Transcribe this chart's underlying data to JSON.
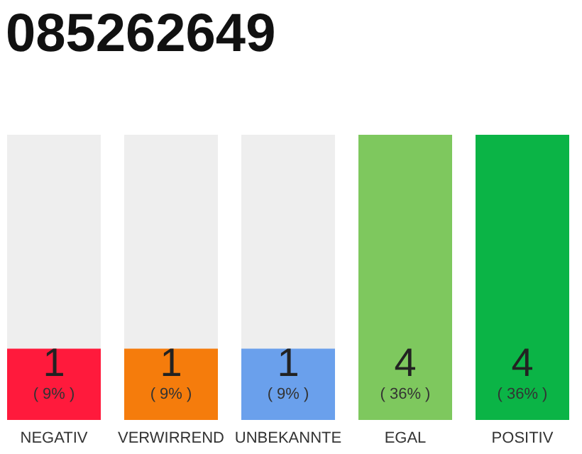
{
  "chart_data": {
    "type": "bar",
    "title": "085262649",
    "categories": [
      "NEGATIV",
      "VERWIRREND",
      "UNBEKANNTE",
      "EGAL",
      "POSITIV"
    ],
    "values": [
      1,
      1,
      1,
      4,
      4
    ],
    "colors": [
      "#ff1a3c",
      "#f57c0c",
      "#6aa0ec",
      "#7ec85e",
      "#0bb446"
    ],
    "data_labels": true,
    "annotations": [
      "( 9% )",
      "( 9% )",
      "( 9% )",
      "( 36% )",
      "( 36% )"
    ]
  }
}
